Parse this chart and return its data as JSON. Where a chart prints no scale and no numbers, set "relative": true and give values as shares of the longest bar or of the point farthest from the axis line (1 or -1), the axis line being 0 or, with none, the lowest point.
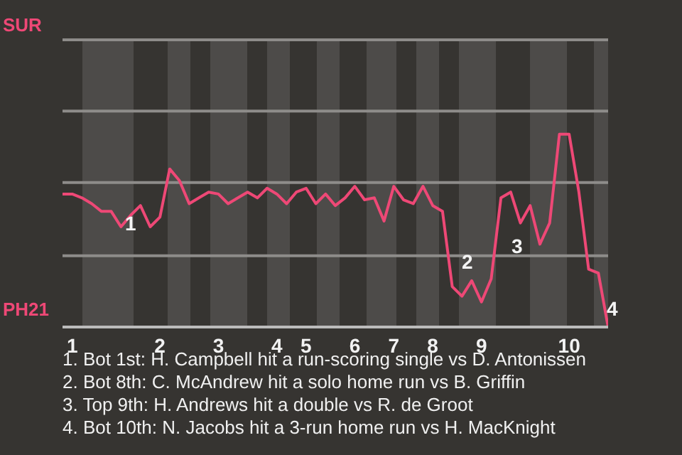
{
  "chart_data": {
    "type": "line",
    "relative": true,
    "categories": [
      null,
      "1",
      null,
      null,
      null,
      null,
      null,
      null,
      null,
      null,
      "2",
      null,
      null,
      null,
      null,
      null,
      "3",
      null,
      null,
      null,
      null,
      null,
      "4",
      null,
      null,
      "5",
      null,
      null,
      null,
      null,
      "6",
      null,
      null,
      null,
      "7",
      null,
      null,
      null,
      "8",
      null,
      null,
      null,
      null,
      "9",
      null,
      null,
      null,
      null,
      null,
      null,
      null,
      null,
      "10",
      null,
      null,
      null,
      null
    ],
    "series": [
      {
        "color": "#ee4876",
        "values": [
          0.69,
          0.69,
          0.67,
          0.64,
          0.6,
          0.6,
          0.52,
          0.58,
          0.63,
          0.52,
          0.57,
          0.82,
          0.76,
          0.64,
          0.67,
          0.7,
          0.69,
          0.64,
          0.67,
          0.7,
          0.67,
          0.72,
          0.69,
          0.64,
          0.7,
          0.72,
          0.64,
          0.69,
          0.63,
          0.67,
          0.73,
          0.66,
          0.67,
          0.55,
          0.73,
          0.66,
          0.64,
          0.73,
          0.63,
          0.6,
          0.21,
          0.16,
          0.24,
          0.13,
          0.25,
          0.67,
          0.7,
          0.54,
          0.63,
          0.43,
          0.54,
          1,
          1,
          0.7,
          0.3,
          0.28,
          0
        ]
      }
    ],
    "marker": "none",
    "line_style": "solid",
    "ref_lines": [
      {
        "axis": "y",
        "value": 1.49,
        "label": "SUR",
        "color": "#8e8c8a"
      },
      {
        "axis": "y",
        "value": 1.12,
        "label": null,
        "color": "#8e8c8a"
      },
      {
        "axis": "y",
        "value": 0.75,
        "label": null,
        "color": "#8e8c8a"
      },
      {
        "axis": "y",
        "value": 0.37,
        "label": null,
        "color": "#8e8c8a"
      }
    ],
    "annotations": [
      "1",
      "2",
      "3",
      "4",
      "PH21",
      "1. Bot 1st: H. Campbell hit a run-scoring single vs D. Antonissen",
      "2. Bot 8th: C. McAndrew hit a solo home run vs B. Griffin",
      "3. Top 9th: H. Andrews hit a double vs R. de Groot",
      "4. Bot 10th: N. Jacobs hit a 3-run home run vs H. MacKnight"
    ]
  }
}
